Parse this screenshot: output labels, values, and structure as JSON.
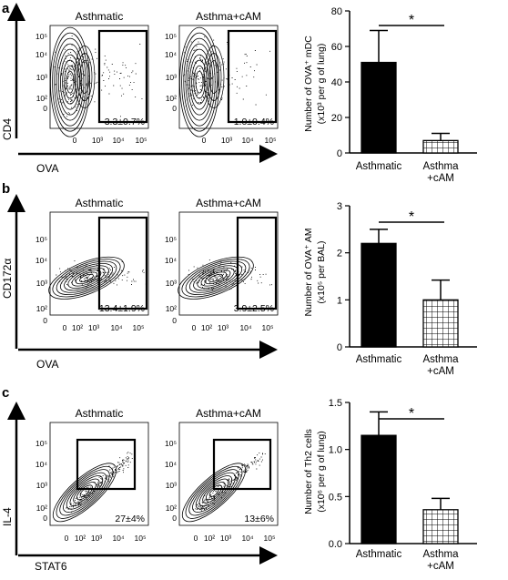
{
  "figure": {
    "panels": [
      {
        "letter": "a",
        "flow": {
          "y_axis_label": "CD4",
          "x_axis_label": "OVA",
          "y_ticks": [
            "10⁵",
            "10⁴",
            "10³",
            "10²",
            "0"
          ],
          "x_ticks": [
            "0",
            "10³",
            "10⁴",
            "10⁵"
          ],
          "plots": [
            {
              "title": "Asthmatic",
              "gate_value": "3.3±0.7%"
            },
            {
              "title": "Asthma+cAM",
              "gate_value": "1.0±0.4%"
            }
          ]
        },
        "bar": {
          "ylabel_line1": "Number of OVA⁺ mDC",
          "ylabel_line2": "(x10³ per g of lung)",
          "y_ticks": [
            "80",
            "60",
            "40",
            "20",
            "0"
          ],
          "categories": [
            [
              "Asthmatic"
            ],
            [
              "Asthma",
              "+cAM"
            ]
          ],
          "significance": "*"
        }
      },
      {
        "letter": "b",
        "flow": {
          "y_axis_label": "CD172α",
          "x_axis_label": "OVA",
          "y_ticks": [
            "10⁵",
            "10⁴",
            "10³",
            "10²",
            "0"
          ],
          "x_ticks": [
            "0",
            "10²",
            "10³",
            "10⁴",
            "10⁵"
          ],
          "plots": [
            {
              "title": "Asthmatic",
              "gate_value": "13.4±1.9%"
            },
            {
              "title": "Asthma+cAM",
              "gate_value": "3.9±2.5%"
            }
          ]
        },
        "bar": {
          "ylabel_line1": "Number of OVA⁺ AM",
          "ylabel_line2": "(x10⁵ per BAL)",
          "y_ticks": [
            "3",
            "2",
            "1",
            "0"
          ],
          "categories": [
            [
              "Asthmatic"
            ],
            [
              "Asthma",
              "+cAM"
            ]
          ],
          "significance": "*"
        }
      },
      {
        "letter": "c",
        "flow": {
          "y_axis_label": "IL-4",
          "x_axis_label": "STAT6",
          "y_ticks": [
            "10⁵",
            "10⁴",
            "10³",
            "10²",
            "0"
          ],
          "x_ticks": [
            "0",
            "10²",
            "10³",
            "10⁴",
            "10⁵"
          ],
          "plots": [
            {
              "title": "Asthmatic",
              "gate_value": "27±4%"
            },
            {
              "title": "Asthma+cAM",
              "gate_value": "13±6%"
            }
          ]
        },
        "bar": {
          "ylabel_line1": "Number of Th2 cells",
          "ylabel_line2": "(x10⁶ per g of lung)",
          "y_ticks": [
            "1.5",
            "1.0",
            "0.5",
            "0.0"
          ],
          "categories": [
            [
              "Asthmatic"
            ],
            [
              "Asthma",
              "+cAM"
            ]
          ],
          "significance": "*"
        }
      }
    ]
  },
  "chart_data": [
    {
      "type": "bar",
      "categories": [
        "Asthmatic",
        "Asthma +cAM"
      ],
      "values": [
        51,
        7
      ],
      "errors": [
        18,
        4
      ],
      "ylim": [
        0,
        80
      ],
      "ylabel": "Number of OVA⁺ mDC (x10³ per g of lung)",
      "bar_styles": [
        "solid",
        "hatched"
      ],
      "significance": "*",
      "fill_color": "#000000"
    },
    {
      "type": "bar",
      "categories": [
        "Asthmatic",
        "Asthma +cAM"
      ],
      "values": [
        2.2,
        1.0
      ],
      "errors": [
        0.3,
        0.42
      ],
      "ylim": [
        0,
        3
      ],
      "ylabel": "Number of OVA⁺ AM (x10⁵ per BAL)",
      "bar_styles": [
        "solid",
        "hatched"
      ],
      "significance": "*",
      "fill_color": "#000000"
    },
    {
      "type": "bar",
      "categories": [
        "Asthmatic",
        "Asthma +cAM"
      ],
      "values": [
        1.15,
        0.36
      ],
      "errors": [
        0.25,
        0.12
      ],
      "ylim": [
        0,
        1.5
      ],
      "ylabel": "Number of Th2 cells (x10⁶ per g of lung)",
      "bar_styles": [
        "solid",
        "hatched"
      ],
      "significance": "*",
      "fill_color": "#000000"
    }
  ]
}
